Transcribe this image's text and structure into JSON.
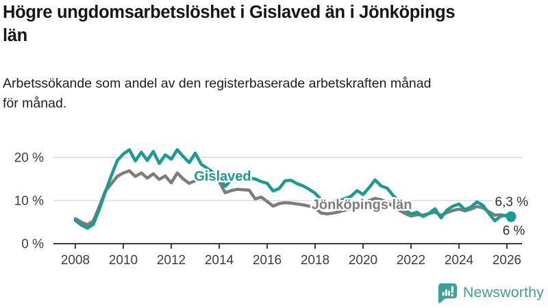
{
  "chart_data": {
    "type": "line",
    "title": "Högre ungdomsarbetslöshet i Gislaved än i Jönköpings\nlän",
    "subtitle": "Arbetssökande som andel av den registerbaserade arbetskraften månad\nför månad.",
    "xlabel": "",
    "ylabel": "",
    "ylim": [
      0,
      23.5
    ],
    "xlim": [
      2007.1,
      2026.6
    ],
    "grid": "horizontal-only",
    "legend_position": "inline-labels",
    "y_ticks": [
      {
        "value": 0,
        "label": "0 %"
      },
      {
        "value": 10,
        "label": "10 %"
      },
      {
        "value": 20,
        "label": "20 %"
      }
    ],
    "x_ticks": [
      {
        "value": 2008,
        "label": "2008"
      },
      {
        "value": 2010,
        "label": "2010"
      },
      {
        "value": 2012,
        "label": "2012"
      },
      {
        "value": 2014,
        "label": "2014"
      },
      {
        "value": 2016,
        "label": "2016"
      },
      {
        "value": 2018,
        "label": "2018"
      },
      {
        "value": 2020,
        "label": "2020"
      },
      {
        "value": 2022,
        "label": "2022"
      },
      {
        "value": 2024,
        "label": "2024"
      },
      {
        "value": 2026,
        "label": "2026"
      }
    ],
    "x": [
      2008,
      2008.25,
      2008.5,
      2008.75,
      2009,
      2009.25,
      2009.5,
      2009.75,
      2010,
      2010.25,
      2010.5,
      2010.75,
      2011,
      2011.25,
      2011.5,
      2011.75,
      2012,
      2012.25,
      2012.5,
      2012.75,
      2013,
      2013.25,
      2013.5,
      2013.75,
      2014,
      2014.25,
      2014.5,
      2014.75,
      2015,
      2015.25,
      2015.5,
      2015.75,
      2016,
      2016.25,
      2016.5,
      2016.75,
      2017,
      2017.25,
      2017.5,
      2017.75,
      2018,
      2018.25,
      2018.5,
      2018.75,
      2019,
      2019.25,
      2019.5,
      2019.75,
      2020,
      2020.25,
      2020.5,
      2020.75,
      2021,
      2021.25,
      2021.5,
      2021.75,
      2022,
      2022.25,
      2022.5,
      2022.75,
      2023,
      2023.25,
      2023.5,
      2023.75,
      2024,
      2024.25,
      2024.5,
      2024.75,
      2025,
      2025.25,
      2025.5,
      2025.75,
      2026,
      2026.17
    ],
    "series": [
      {
        "name": "Gislaved",
        "color": "#189c91",
        "end_label": "6,3 %",
        "end_value": 6.3,
        "end_dot_radius": 7.5,
        "end_label_anchor": [
          2025.5,
          8.7
        ],
        "name_label_anchor": [
          2012.95,
          14.6
        ],
        "values": [
          5.4,
          4.3,
          3.6,
          4.5,
          8.0,
          12.0,
          15.8,
          19.3,
          20.8,
          21.8,
          19.2,
          21.2,
          19.3,
          21.4,
          18.6,
          20.6,
          19.6,
          21.8,
          20.2,
          18.8,
          21.0,
          18.4,
          17.5,
          16.5,
          15.5,
          13.3,
          14.8,
          15.6,
          15.6,
          15.2,
          15.0,
          14.4,
          14.0,
          12.2,
          12.8,
          14.6,
          14.7,
          13.9,
          13.4,
          12.6,
          11.7,
          10.2,
          9.6,
          9.8,
          9.9,
          10.5,
          11.0,
          12.3,
          11.4,
          13.0,
          14.8,
          13.4,
          12.9,
          11.2,
          9.8,
          7.8,
          6.9,
          7.3,
          6.3,
          7.0,
          8.1,
          6.0,
          7.8,
          8.7,
          9.2,
          7.9,
          8.5,
          9.7,
          8.9,
          7.0,
          5.3,
          6.4,
          6.6,
          6.3
        ]
      },
      {
        "name": "Jönköpings län",
        "color": "#7c7c7c",
        "end_label": "6 %",
        "end_value": 6.0,
        "end_dot_radius": 6.5,
        "end_label_anchor": [
          2025.82,
          2.05
        ],
        "name_label_anchor": [
          2017.85,
          8.0
        ],
        "values": [
          5.8,
          5.0,
          4.4,
          5.3,
          8.6,
          12.2,
          13.9,
          15.6,
          16.4,
          16.9,
          15.6,
          16.4,
          15.2,
          16.2,
          14.9,
          15.7,
          14.1,
          16.4,
          15.0,
          14.0,
          14.6,
          15.4,
          15.8,
          15.0,
          14.4,
          11.8,
          12.3,
          12.6,
          12.5,
          12.4,
          10.4,
          10.8,
          9.8,
          8.7,
          9.3,
          9.5,
          9.4,
          9.2,
          9.0,
          8.7,
          8.2,
          7.1,
          6.9,
          7.1,
          7.4,
          7.8,
          8.1,
          8.7,
          9.1,
          10.0,
          10.5,
          10.2,
          9.6,
          8.7,
          7.8,
          7.0,
          6.4,
          6.7,
          6.6,
          7.0,
          7.3,
          6.6,
          7.2,
          7.7,
          8.0,
          7.6,
          8.0,
          8.6,
          8.3,
          7.4,
          6.6,
          6.7,
          6.4,
          6.0
        ]
      }
    ],
    "style": {
      "grid_color": "#dadada",
      "axis_color": "#3c3c3c",
      "tick_color": "#3c3c3c",
      "value_color": "#2e2e2e"
    }
  },
  "footer": {
    "brand": "Newsworthy",
    "brand_color": "#3d9f99"
  }
}
